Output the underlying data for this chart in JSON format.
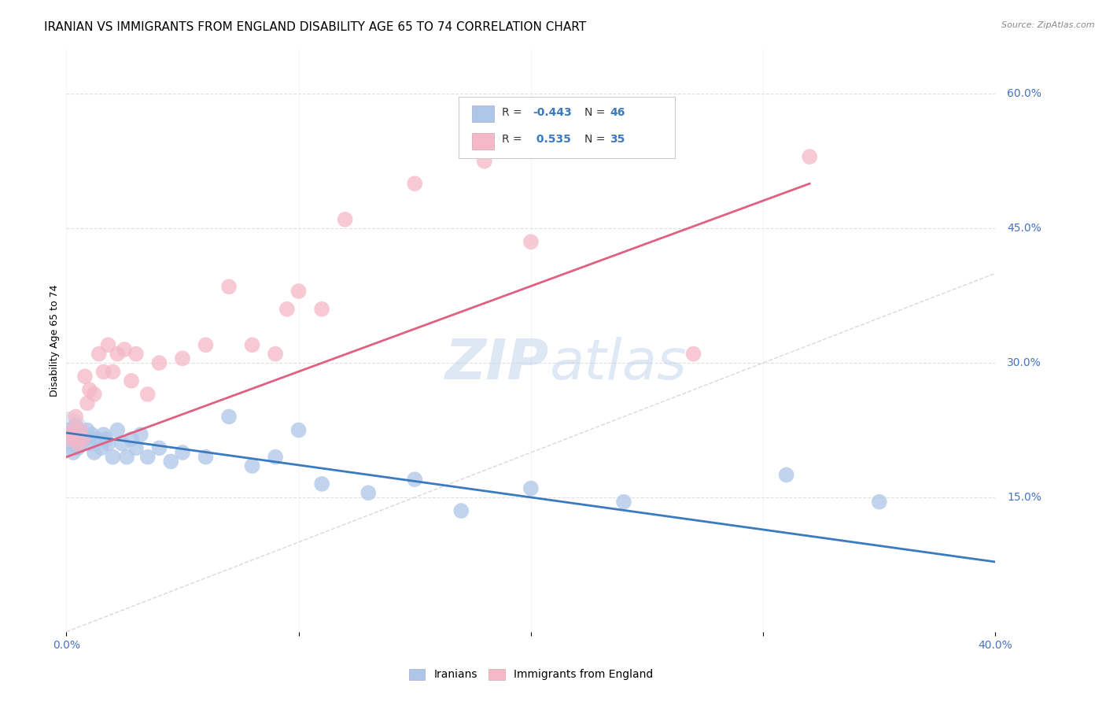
{
  "title": "IRANIAN VS IMMIGRANTS FROM ENGLAND DISABILITY AGE 65 TO 74 CORRELATION CHART",
  "source": "Source: ZipAtlas.com",
  "ylabel": "Disability Age 65 to 74",
  "xlim": [
    0.0,
    0.4
  ],
  "ylim": [
    0.0,
    0.65
  ],
  "x_ticks": [
    0.0,
    0.1,
    0.2,
    0.3,
    0.4
  ],
  "x_tick_labels": [
    "0.0%",
    "",
    "",
    "",
    "40.0%"
  ],
  "y_ticks": [
    0.15,
    0.3,
    0.45,
    0.6
  ],
  "y_tick_labels": [
    "15.0%",
    "30.0%",
    "45.0%",
    "60.0%"
  ],
  "legend_label1": "Iranians",
  "legend_label2": "Immigrants from England",
  "blue_scatter_color": "#aec6e8",
  "pink_scatter_color": "#f4b8c8",
  "blue_line_color": "#3a7abf",
  "pink_line_color": "#e06080",
  "diagonal_line_color": "#d0d0d0",
  "grid_color": "#e0e0e0",
  "background_color": "#ffffff",
  "iranians_x": [
    0.001,
    0.001,
    0.002,
    0.002,
    0.003,
    0.003,
    0.004,
    0.004,
    0.005,
    0.005,
    0.006,
    0.007,
    0.008,
    0.009,
    0.01,
    0.011,
    0.012,
    0.013,
    0.015,
    0.016,
    0.017,
    0.018,
    0.02,
    0.022,
    0.024,
    0.026,
    0.028,
    0.03,
    0.032,
    0.035,
    0.04,
    0.045,
    0.05,
    0.06,
    0.07,
    0.08,
    0.09,
    0.1,
    0.11,
    0.13,
    0.15,
    0.17,
    0.2,
    0.24,
    0.31,
    0.35
  ],
  "iranians_y": [
    0.225,
    0.215,
    0.22,
    0.21,
    0.22,
    0.2,
    0.23,
    0.215,
    0.225,
    0.205,
    0.21,
    0.22,
    0.215,
    0.225,
    0.21,
    0.22,
    0.2,
    0.215,
    0.205,
    0.22,
    0.215,
    0.21,
    0.195,
    0.225,
    0.21,
    0.195,
    0.215,
    0.205,
    0.22,
    0.195,
    0.205,
    0.19,
    0.2,
    0.195,
    0.24,
    0.185,
    0.195,
    0.225,
    0.165,
    0.155,
    0.17,
    0.135,
    0.16,
    0.145,
    0.175,
    0.145
  ],
  "england_x": [
    0.001,
    0.002,
    0.003,
    0.004,
    0.005,
    0.006,
    0.007,
    0.008,
    0.009,
    0.01,
    0.012,
    0.014,
    0.016,
    0.018,
    0.02,
    0.022,
    0.025,
    0.028,
    0.03,
    0.035,
    0.04,
    0.05,
    0.06,
    0.07,
    0.08,
    0.09,
    0.095,
    0.1,
    0.11,
    0.12,
    0.15,
    0.18,
    0.2,
    0.27,
    0.32
  ],
  "england_y": [
    0.22,
    0.215,
    0.225,
    0.24,
    0.21,
    0.225,
    0.215,
    0.285,
    0.255,
    0.27,
    0.265,
    0.31,
    0.29,
    0.32,
    0.29,
    0.31,
    0.315,
    0.28,
    0.31,
    0.265,
    0.3,
    0.305,
    0.32,
    0.385,
    0.32,
    0.31,
    0.36,
    0.38,
    0.36,
    0.46,
    0.5,
    0.525,
    0.435,
    0.31,
    0.53
  ],
  "blue_trend_x0": 0.0,
  "blue_trend_y0": 0.222,
  "blue_trend_x1": 0.4,
  "blue_trend_y1": 0.078,
  "pink_trend_x0": 0.0,
  "pink_trend_y0": 0.195,
  "pink_trend_x1": 0.32,
  "pink_trend_y1": 0.5,
  "watermark_zip": "ZIP",
  "watermark_atlas": "atlas",
  "title_fontsize": 11,
  "axis_fontsize": 9,
  "tick_fontsize": 10
}
